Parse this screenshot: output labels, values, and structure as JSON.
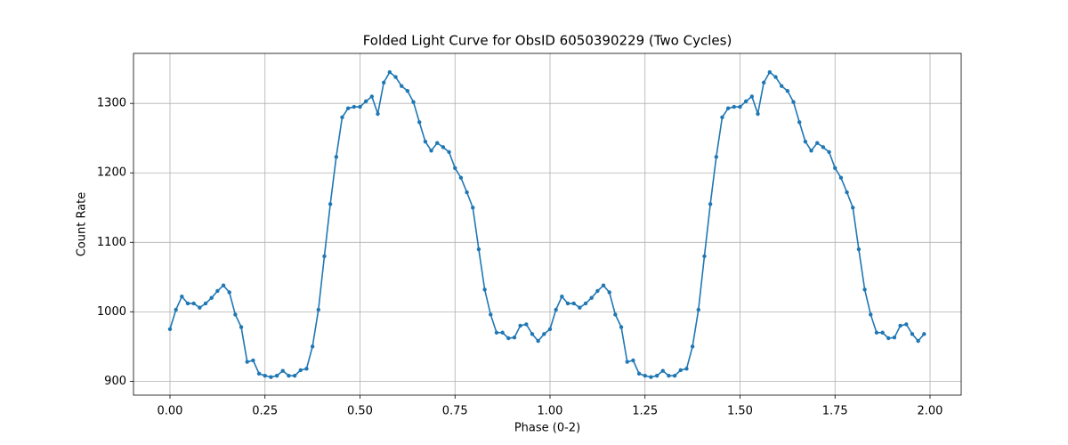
{
  "chart_data": {
    "type": "line",
    "title": "Folded Light Curve for ObsID 6050390229 (Two Cycles)",
    "x_label": "Phase (0-2)",
    "y_label": "Count Rate",
    "xlim": [
      -0.096,
      2.082
    ],
    "ylim": [
      880,
      1372
    ],
    "xticks": [
      {
        "value": 0,
        "label": "0.00"
      },
      {
        "value": 0.25,
        "label": "0.25"
      },
      {
        "value": 0.5,
        "label": "0.50"
      },
      {
        "value": 0.75,
        "label": "0.75"
      },
      {
        "value": 1,
        "label": "1.00"
      },
      {
        "value": 1.25,
        "label": "1.25"
      },
      {
        "value": 1.5,
        "label": "1.50"
      },
      {
        "value": 1.75,
        "label": "1.75"
      },
      {
        "value": 2,
        "label": "2.00"
      }
    ],
    "yticks": [
      900,
      1000,
      1100,
      1200,
      1300
    ],
    "grid": true,
    "x": [
      0,
      0.015625,
      0.03125,
      0.046875,
      0.0625,
      0.078125,
      0.09375,
      0.109375,
      0.125,
      0.140625,
      0.15625,
      0.171875,
      0.1875,
      0.203125,
      0.21875,
      0.234375,
      0.25,
      0.265625,
      0.28125,
      0.296875,
      0.3125,
      0.328125,
      0.34375,
      0.359375,
      0.375,
      0.390625,
      0.40625,
      0.421875,
      0.4375,
      0.453125,
      0.46875,
      0.484375,
      0.5,
      0.515625,
      0.53125,
      0.546875,
      0.5625,
      0.578125,
      0.59375,
      0.609375,
      0.625,
      0.640625,
      0.65625,
      0.671875,
      0.6875,
      0.703125,
      0.71875,
      0.734375,
      0.75,
      0.765625,
      0.78125,
      0.796875,
      0.8125,
      0.828125,
      0.84375,
      0.859375,
      0.875,
      0.890625,
      0.90625,
      0.921875,
      0.9375,
      0.953125,
      0.96875,
      0.984375,
      1,
      1.015625,
      1.03125,
      1.046875,
      1.0625,
      1.078125,
      1.09375,
      1.109375,
      1.125,
      1.140625,
      1.15625,
      1.171875,
      1.1875,
      1.203125,
      1.21875,
      1.234375,
      1.25,
      1.265625,
      1.28125,
      1.296875,
      1.3125,
      1.328125,
      1.34375,
      1.359375,
      1.375,
      1.390625,
      1.40625,
      1.421875,
      1.4375,
      1.453125,
      1.46875,
      1.484375,
      1.5,
      1.515625,
      1.53125,
      1.546875,
      1.5625,
      1.578125,
      1.59375,
      1.609375,
      1.625,
      1.640625,
      1.65625,
      1.671875,
      1.6875,
      1.703125,
      1.71875,
      1.734375,
      1.75,
      1.765625,
      1.78125,
      1.796875,
      1.8125,
      1.828125,
      1.84375,
      1.859375,
      1.875,
      1.890625,
      1.90625,
      1.921875,
      1.9375,
      1.953125,
      1.96875,
      1.984375
    ],
    "series": [
      {
        "color": "#1f77b4",
        "values": [
          975,
          1003,
          1022,
          1012,
          1012,
          1006,
          1012,
          1020,
          1030,
          1038,
          1028,
          996,
          978,
          928,
          930,
          911,
          908,
          906,
          908,
          915,
          908,
          908,
          916,
          918,
          950,
          1003,
          1080,
          1155,
          1223,
          1280,
          1293,
          1295,
          1295,
          1303,
          1310,
          1285,
          1330,
          1345,
          1338,
          1325,
          1318,
          1302,
          1273,
          1245,
          1232,
          1243,
          1237,
          1230,
          1207,
          1193,
          1172,
          1150,
          1090,
          1032,
          996,
          970,
          970,
          962,
          963,
          980,
          982,
          968,
          958,
          968,
          975,
          1003,
          1022,
          1012,
          1012,
          1006,
          1012,
          1020,
          1030,
          1038,
          1028,
          996,
          978,
          928,
          930,
          911,
          908,
          906,
          908,
          915,
          908,
          908,
          916,
          918,
          950,
          1003,
          1080,
          1155,
          1223,
          1280,
          1293,
          1295,
          1295,
          1303,
          1310,
          1285,
          1330,
          1345,
          1338,
          1325,
          1318,
          1302,
          1273,
          1245,
          1232,
          1243,
          1237,
          1230,
          1207,
          1193,
          1172,
          1150,
          1090,
          1032,
          996,
          970,
          970,
          962,
          963,
          980,
          982,
          968,
          958,
          968
        ]
      }
    ]
  }
}
